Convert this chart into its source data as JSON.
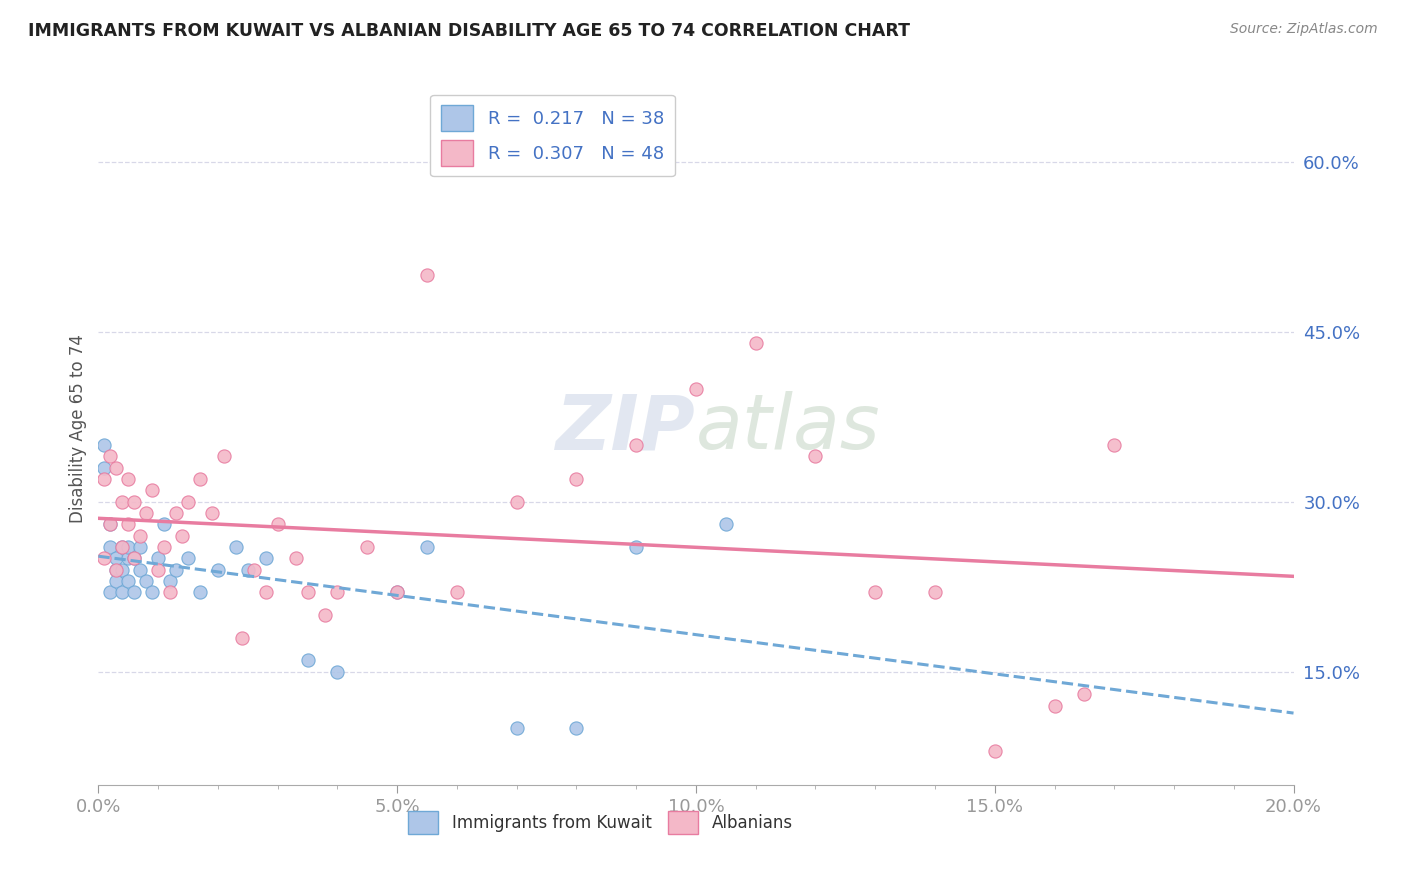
{
  "title": "IMMIGRANTS FROM KUWAIT VS ALBANIAN DISABILITY AGE 65 TO 74 CORRELATION CHART",
  "source_text": "Source: ZipAtlas.com",
  "ylabel": "Disability Age 65 to 74",
  "xlim": [
    0.0,
    0.2
  ],
  "ylim": [
    0.05,
    0.68
  ],
  "xtick_labels": [
    "0.0%",
    "5.0%",
    "10.0%",
    "15.0%",
    "20.0%"
  ],
  "xtick_vals": [
    0.0,
    0.05,
    0.1,
    0.15,
    0.2
  ],
  "ytick_labels": [
    "15.0%",
    "30.0%",
    "45.0%",
    "60.0%"
  ],
  "ytick_vals": [
    0.15,
    0.3,
    0.45,
    0.6
  ],
  "kuwait_color": "#aec6e8",
  "albanian_color": "#f4b8c8",
  "kuwait_line_color": "#6fa8d6",
  "albanian_line_color": "#e87ca0",
  "kuwait_R": 0.217,
  "kuwait_N": 38,
  "albanian_R": 0.307,
  "albanian_N": 48,
  "background_color": "#ffffff",
  "grid_color": "#d8d8e8",
  "kuwait_scatter_x": [
    0.001,
    0.001,
    0.002,
    0.002,
    0.002,
    0.003,
    0.003,
    0.003,
    0.004,
    0.004,
    0.004,
    0.005,
    0.005,
    0.005,
    0.006,
    0.006,
    0.007,
    0.007,
    0.008,
    0.009,
    0.01,
    0.011,
    0.012,
    0.013,
    0.015,
    0.017,
    0.02,
    0.023,
    0.025,
    0.028,
    0.035,
    0.04,
    0.05,
    0.055,
    0.07,
    0.08,
    0.09,
    0.105
  ],
  "kuwait_scatter_y": [
    0.35,
    0.33,
    0.28,
    0.26,
    0.22,
    0.24,
    0.25,
    0.23,
    0.24,
    0.26,
    0.22,
    0.25,
    0.23,
    0.26,
    0.22,
    0.25,
    0.24,
    0.26,
    0.23,
    0.22,
    0.25,
    0.28,
    0.23,
    0.24,
    0.25,
    0.22,
    0.24,
    0.26,
    0.24,
    0.25,
    0.16,
    0.15,
    0.22,
    0.26,
    0.1,
    0.1,
    0.26,
    0.28
  ],
  "albanian_scatter_x": [
    0.001,
    0.001,
    0.002,
    0.002,
    0.003,
    0.003,
    0.004,
    0.004,
    0.005,
    0.005,
    0.006,
    0.006,
    0.007,
    0.008,
    0.009,
    0.01,
    0.011,
    0.012,
    0.013,
    0.014,
    0.015,
    0.017,
    0.019,
    0.021,
    0.024,
    0.026,
    0.028,
    0.03,
    0.033,
    0.035,
    0.038,
    0.04,
    0.045,
    0.05,
    0.055,
    0.06,
    0.07,
    0.08,
    0.09,
    0.1,
    0.11,
    0.12,
    0.13,
    0.14,
    0.15,
    0.16,
    0.165,
    0.17
  ],
  "albanian_scatter_y": [
    0.25,
    0.32,
    0.28,
    0.34,
    0.24,
    0.33,
    0.26,
    0.3,
    0.28,
    0.32,
    0.25,
    0.3,
    0.27,
    0.29,
    0.31,
    0.24,
    0.26,
    0.22,
    0.29,
    0.27,
    0.3,
    0.32,
    0.29,
    0.34,
    0.18,
    0.24,
    0.22,
    0.28,
    0.25,
    0.22,
    0.2,
    0.22,
    0.26,
    0.22,
    0.5,
    0.22,
    0.3,
    0.32,
    0.35,
    0.4,
    0.44,
    0.34,
    0.22,
    0.22,
    0.08,
    0.12,
    0.13,
    0.35
  ]
}
